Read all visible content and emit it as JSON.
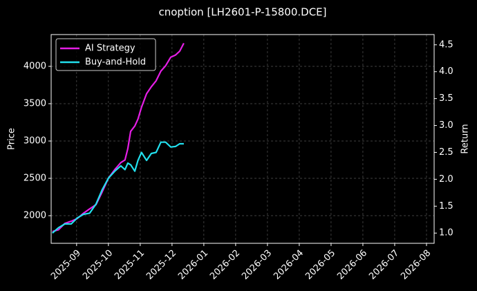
{
  "chart_data": {
    "type": "line",
    "title": "cnoption [LH2601-P-15800.DCE]",
    "ylabel": "Price",
    "y2label": "Return",
    "x": [
      -0.76,
      -0.57,
      -0.37,
      -0.17,
      0.02,
      0.22,
      0.41,
      0.61,
      0.8,
      1.0,
      1.2,
      1.39,
      1.52,
      1.61,
      1.7,
      1.83,
      1.93,
      2.04,
      2.2,
      2.35,
      2.5,
      2.65,
      2.8,
      2.96,
      3.11,
      3.24,
      3.37
    ],
    "xlim": [
      -0.8,
      11.24
    ],
    "xticks": [
      {
        "value": 0,
        "label": "2025-09"
      },
      {
        "value": 1,
        "label": "2025-10"
      },
      {
        "value": 2,
        "label": "2025-11"
      },
      {
        "value": 3,
        "label": "2025-12"
      },
      {
        "value": 4,
        "label": "2026-01"
      },
      {
        "value": 5,
        "label": "2026-02"
      },
      {
        "value": 6,
        "label": "2026-03"
      },
      {
        "value": 7,
        "label": "2026-04"
      },
      {
        "value": 8,
        "label": "2026-05"
      },
      {
        "value": 9,
        "label": "2026-06"
      },
      {
        "value": 10,
        "label": "2026-07"
      },
      {
        "value": 11,
        "label": "2026-08"
      }
    ],
    "ylim": [
      1630,
      4426
    ],
    "yticks": [
      2000,
      2500,
      3000,
      3500,
      4000
    ],
    "y2lim": [
      0.81,
      4.69
    ],
    "y2ticks": [
      {
        "value": 1,
        "label": "1.0"
      },
      1.5,
      {
        "value": 2,
        "label": "2.0"
      },
      2.5,
      {
        "value": 3,
        "label": "3.0"
      },
      3.5,
      {
        "value": 4,
        "label": "4.0"
      },
      4.5
    ],
    "grid": true,
    "legend": "upper left",
    "series": [
      {
        "name": "AI Strategy",
        "color": "#e61ee6",
        "axis": "y2",
        "values": [
          1.03,
          1.06,
          1.18,
          1.22,
          1.27,
          1.37,
          1.45,
          1.53,
          1.76,
          2.02,
          2.18,
          2.31,
          2.36,
          2.57,
          2.89,
          2.99,
          3.12,
          3.34,
          3.59,
          3.72,
          3.83,
          4.01,
          4.11,
          4.27,
          4.31,
          4.38,
          4.53
        ]
      },
      {
        "name": "Buy-and-Hold",
        "color": "#22e0ee",
        "axis": "y2",
        "values": [
          1.0,
          1.1,
          1.17,
          1.17,
          1.28,
          1.35,
          1.37,
          1.54,
          1.8,
          2.02,
          2.15,
          2.25,
          2.18,
          2.3,
          2.27,
          2.15,
          2.35,
          2.5,
          2.35,
          2.48,
          2.5,
          2.69,
          2.69,
          2.6,
          2.61,
          2.66,
          2.66
        ]
      }
    ]
  }
}
